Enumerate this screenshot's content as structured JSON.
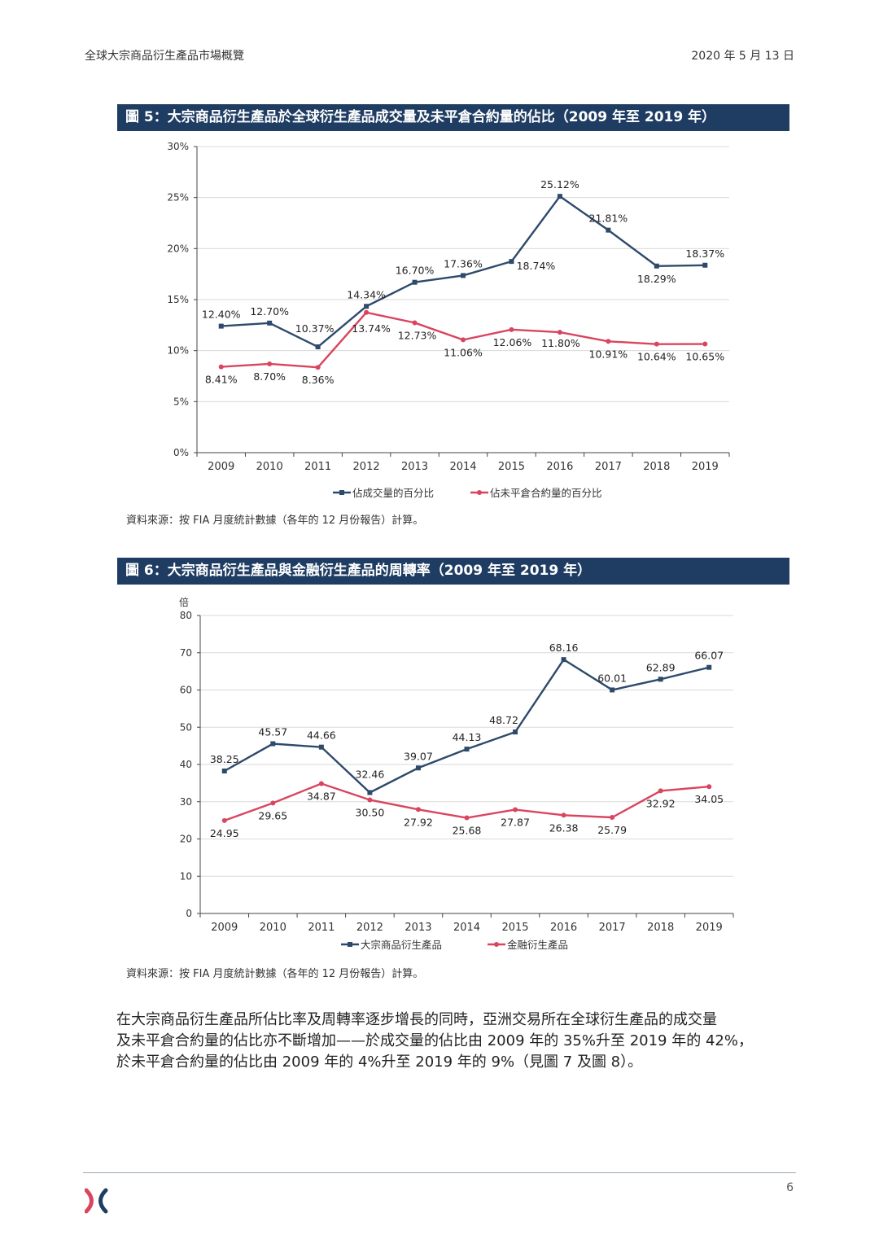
{
  "header": {
    "left": "全球大宗商品衍生產品市場概覽",
    "right": "2020 年 5 月 13 日"
  },
  "colors": {
    "navy": "#2e4a6b",
    "red": "#d9455f",
    "title_bg": "#1f3d63"
  },
  "chart_data": [
    {
      "type": "line",
      "title": "圖 5：大宗商品衍生產品於全球衍生產品成交量及未平倉合約量的佔比（2009 年至 2019 年）",
      "categories": [
        "2009",
        "2010",
        "2011",
        "2012",
        "2013",
        "2014",
        "2015",
        "2016",
        "2017",
        "2018",
        "2019"
      ],
      "y_ticks": [
        "0%",
        "5%",
        "10%",
        "15%",
        "20%",
        "25%",
        "30%"
      ],
      "ylim": [
        0,
        30
      ],
      "ylabel": "",
      "series": [
        {
          "name": "佔成交量的百分比",
          "color": "#2e4a6b",
          "marker": "square",
          "values": [
            12.4,
            12.7,
            10.37,
            14.34,
            16.7,
            17.36,
            18.74,
            25.12,
            21.81,
            18.29,
            18.37
          ],
          "labels": [
            "12.40%",
            "12.70%",
            "10.37%",
            "14.34%",
            "16.70%",
            "17.36%",
            "18.74%",
            "25.12%",
            "21.81%",
            "18.29%",
            "18.37%"
          ]
        },
        {
          "name": "佔未平倉合約量的百分比",
          "color": "#d9455f",
          "marker": "circle",
          "values": [
            8.41,
            8.7,
            8.36,
            13.74,
            12.73,
            11.06,
            12.06,
            11.8,
            10.91,
            10.64,
            10.65
          ],
          "labels": [
            "8.41%",
            "8.70%",
            "8.36%",
            "13.74%",
            "12.73%",
            "11.06%",
            "12.06%",
            "11.80%",
            "10.91%",
            "10.64%",
            "10.65%"
          ]
        }
      ],
      "source": "資料來源：按 FIA 月度統計數據（各年的 12 月份報告）計算。"
    },
    {
      "type": "line",
      "title": "圖 6：大宗商品衍生產品與金融衍生產品的周轉率（2009 年至 2019 年）",
      "categories": [
        "2009",
        "2010",
        "2011",
        "2012",
        "2013",
        "2014",
        "2015",
        "2016",
        "2017",
        "2018",
        "2019"
      ],
      "y_ticks": [
        "0",
        "10",
        "20",
        "30",
        "40",
        "50",
        "60",
        "70",
        "80"
      ],
      "ylim": [
        0,
        80
      ],
      "ylabel": "倍",
      "series": [
        {
          "name": "大宗商品衍生產品",
          "color": "#2e4a6b",
          "marker": "square",
          "values": [
            38.25,
            45.57,
            44.66,
            32.46,
            39.07,
            44.13,
            48.72,
            68.16,
            60.01,
            62.89,
            66.07
          ],
          "labels": [
            "38.25",
            "45.57",
            "44.66",
            "32.46",
            "39.07",
            "44.13",
            "48.72",
            "68.16",
            "60.01",
            "62.89",
            "66.07"
          ]
        },
        {
          "name": "金融衍生產品",
          "color": "#d9455f",
          "marker": "circle",
          "values": [
            24.95,
            29.65,
            34.87,
            30.5,
            27.92,
            25.68,
            27.87,
            26.38,
            25.79,
            32.92,
            34.05
          ],
          "labels": [
            "24.95",
            "29.65",
            "34.87",
            "30.50",
            "27.92",
            "25.68",
            "27.87",
            "26.38",
            "25.79",
            "32.92",
            "34.05"
          ]
        }
      ],
      "source": "資料來源：按 FIA 月度統計數據（各年的 12 月份報告）計算。"
    }
  ],
  "body": {
    "line1": "在大宗商品衍生產品所佔比率及周轉率逐步增長的同時，亞洲交易所在全球衍生產品的成交量",
    "line2": "及未平倉合約量的佔比亦不斷增加——於成交量的佔比由 2009 年的 35%升至 2019 年的 42%，",
    "line3": "於未平倉合約量的佔比由 2009 年的 4%升至 2019 年的 9%（見圖 7 及圖 8）。"
  },
  "footer": {
    "page": "6",
    "logo_icon": "hkex-logo-icon"
  }
}
